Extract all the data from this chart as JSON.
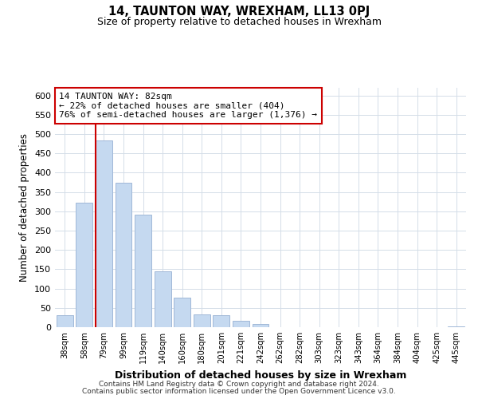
{
  "title": "14, TAUNTON WAY, WREXHAM, LL13 0PJ",
  "subtitle": "Size of property relative to detached houses in Wrexham",
  "xlabel": "Distribution of detached houses by size in Wrexham",
  "ylabel": "Number of detached properties",
  "bar_labels": [
    "38sqm",
    "58sqm",
    "79sqm",
    "99sqm",
    "119sqm",
    "140sqm",
    "160sqm",
    "180sqm",
    "201sqm",
    "221sqm",
    "242sqm",
    "262sqm",
    "282sqm",
    "303sqm",
    "323sqm",
    "343sqm",
    "364sqm",
    "384sqm",
    "404sqm",
    "425sqm",
    "445sqm"
  ],
  "bar_values": [
    32,
    322,
    483,
    375,
    291,
    144,
    76,
    33,
    30,
    17,
    8,
    1,
    0,
    0,
    0,
    0,
    0,
    0,
    0,
    0,
    2
  ],
  "bar_color": "#c5d9f0",
  "bar_edge_color": "#a0b8d8",
  "highlight_line_color": "#cc0000",
  "annotation_line1": "14 TAUNTON WAY: 82sqm",
  "annotation_line2": "← 22% of detached houses are smaller (404)",
  "annotation_line3": "76% of semi-detached houses are larger (1,376) →",
  "annotation_box_color": "#ffffff",
  "annotation_box_edge": "#cc0000",
  "ylim": [
    0,
    620
  ],
  "yticks": [
    0,
    50,
    100,
    150,
    200,
    250,
    300,
    350,
    400,
    450,
    500,
    550,
    600
  ],
  "footer_line1": "Contains HM Land Registry data © Crown copyright and database right 2024.",
  "footer_line2": "Contains public sector information licensed under the Open Government Licence v3.0.",
  "background_color": "#ffffff",
  "grid_color": "#d4dde8"
}
